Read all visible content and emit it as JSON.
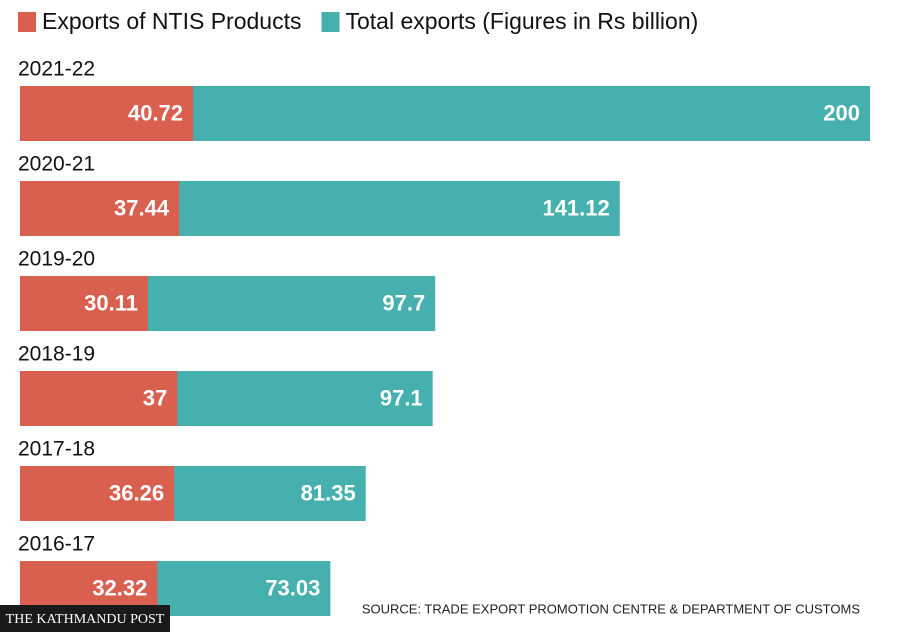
{
  "chart_data": {
    "type": "bar",
    "categories": [
      "2021-22",
      "2020-21",
      "2019-20",
      "2018-19",
      "2017-18",
      "2016-17"
    ],
    "series": [
      {
        "name": "Exports of NTIS Products",
        "color": "#d9604f",
        "values": [
          40.72,
          37.44,
          30.11,
          37,
          36.26,
          32.32
        ]
      },
      {
        "name": "Total exports (Figures in Rs billion)",
        "color": "#45b0ad",
        "values": [
          200,
          141.12,
          97.7,
          97.1,
          81.35,
          73.03
        ]
      }
    ],
    "source": "SOURCE: TRADE EXPORT PROMOTION CENTRE & DEPARTMENT OF CUSTOMS",
    "publisher": "THE KATHMANDU POST"
  }
}
